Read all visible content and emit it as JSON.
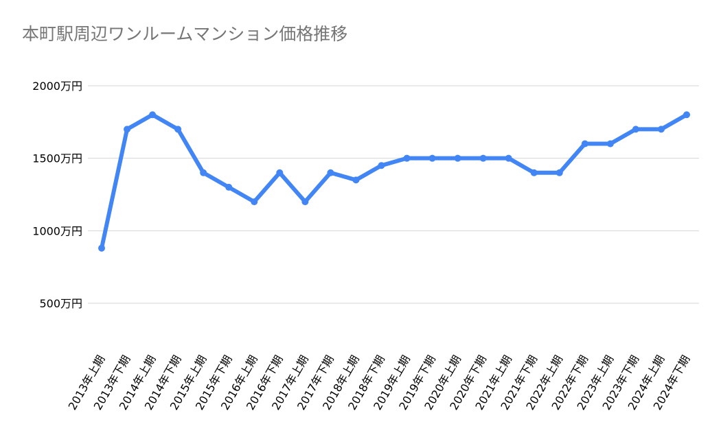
{
  "chart_data": {
    "type": "line",
    "title": "本町駅周辺ワンルームマンション価格推移",
    "xlabel": "",
    "ylabel": "",
    "categories": [
      "2013年上期",
      "2013年下期",
      "2014年上期",
      "2014年下期",
      "2015年上期",
      "2015年下期",
      "2016年上期",
      "2016年下期",
      "2017年上期",
      "2017年下期",
      "2018年上期",
      "2018年下期",
      "2019年上期",
      "2019年下期",
      "2020年上期",
      "2020年下期",
      "2021年上期",
      "2021年下期",
      "2022年上期",
      "2022年下期",
      "2023年上期",
      "2023年下期",
      "2024年上期",
      "2024年下期"
    ],
    "series": [
      {
        "values": [
          880,
          1700,
          1800,
          1700,
          1400,
          1300,
          1200,
          1400,
          1200,
          1400,
          1350,
          1450,
          1500,
          1500,
          1500,
          1500,
          1500,
          1400,
          1400,
          1600,
          1600,
          1700,
          1700,
          1800
        ],
        "color": "#4285f4"
      }
    ],
    "y_ticks": [
      500,
      1000,
      1500,
      2000
    ],
    "y_tick_labels": [
      "500万円",
      "1000万円",
      "1500万円",
      "2000万円"
    ],
    "ylim": [
      300,
      2000
    ],
    "grid": true,
    "legend": "none"
  }
}
